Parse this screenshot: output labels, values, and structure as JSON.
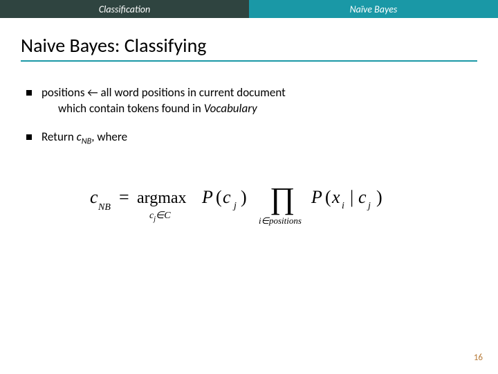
{
  "header": {
    "left_label": "Classification",
    "right_label": "Naïve Bayes",
    "left_bg": "#2f4440",
    "right_bg": "#1a98a6",
    "text_color": "#ffffff"
  },
  "title": {
    "text": "Naive Bayes: Classifying",
    "rule_color": "#1a98a6",
    "fontsize": 28
  },
  "bullets": [
    {
      "line1_prefix": "positions ← all word positions in current document",
      "line2": "which contain tokens found in ",
      "line2_ital": "Vocabulary"
    },
    {
      "line1_prefix": "Return ",
      "var": "c",
      "var_sub": "NB",
      "suffix": ", where"
    }
  ],
  "formula": {
    "lhs_var": "c",
    "lhs_sub": "NB",
    "eq": "=",
    "argmax": "argmax",
    "argmax_sub_var": "c",
    "argmax_sub_j": "j",
    "argmax_sub_set": "∈C",
    "P1_func": "P",
    "P1_arg_var": "c",
    "P1_arg_sub": "j",
    "prod_symbol": "∏",
    "prod_sub_var": "i",
    "prod_sub_rel": "∈positions",
    "P2_func": "P",
    "P2_arg1_var": "x",
    "P2_arg1_sub": "i",
    "P2_bar": "|",
    "P2_arg2_var": "c",
    "P2_arg2_sub": "j",
    "color": "#000000",
    "fontsize_main": 24,
    "fontsize_sub": 14
  },
  "page_number": "16",
  "page_number_color": "#b87d3c"
}
